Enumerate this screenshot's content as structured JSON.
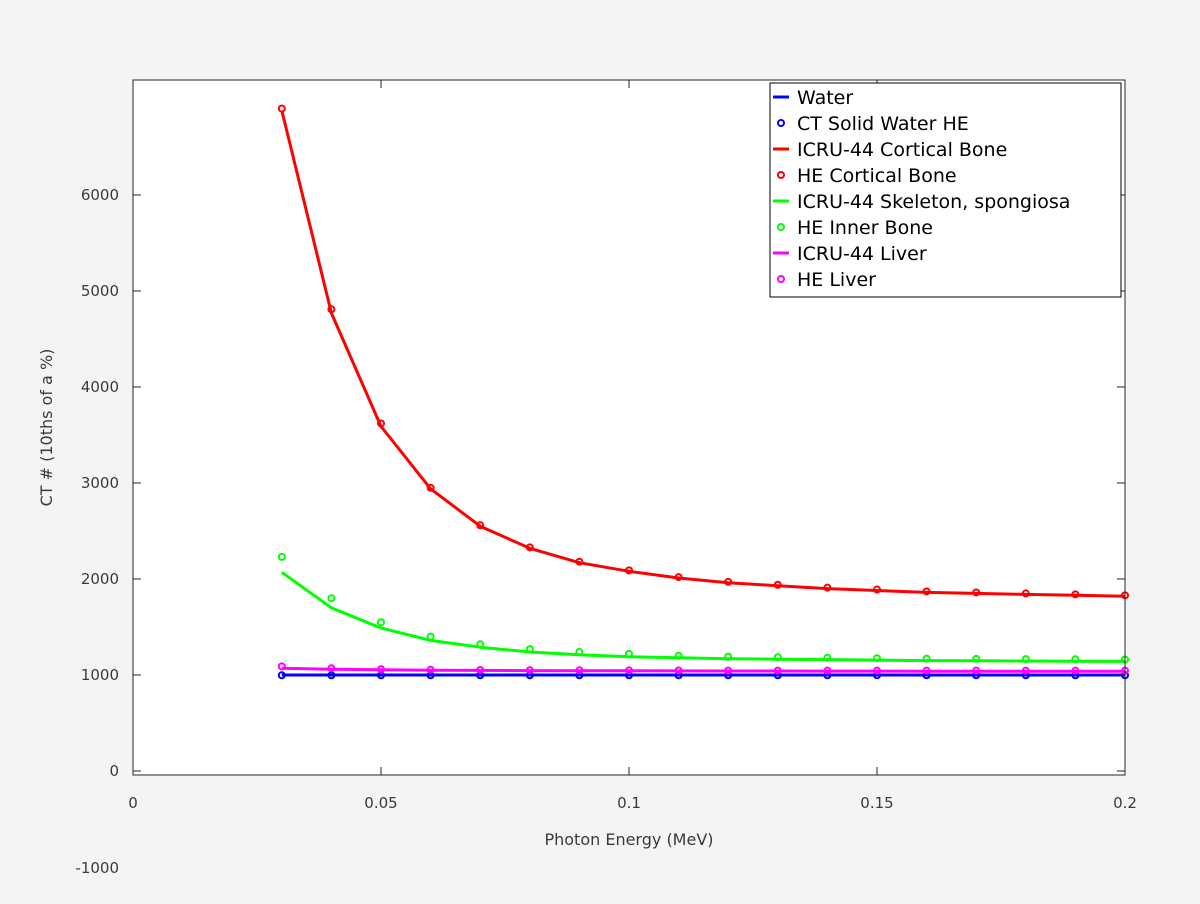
{
  "chart_data": {
    "type": "line",
    "title": "",
    "xlabel": "Photon Energy (MeV)",
    "ylabel": "CT # (10ths of a %)",
    "xlim": [
      0,
      0.2
    ],
    "ylim": [
      0,
      7000
    ],
    "x_ticks": [
      0,
      0.05,
      0.1,
      0.15,
      0.2
    ],
    "x_tick_labels": [
      "0",
      "0.05",
      "0.1",
      "0.15",
      "0.2"
    ],
    "y_ticks": [
      0,
      1000,
      2000,
      3000,
      4000,
      5000,
      6000
    ],
    "y_tick_labels": [
      "0",
      "1000",
      "2000",
      "3000",
      "4000",
      "5000",
      "6000"
    ],
    "extra_label": "-1000",
    "grid": false,
    "legend_position": "top-right",
    "x": [
      0.03,
      0.04,
      0.05,
      0.06,
      0.07,
      0.08,
      0.09,
      0.1,
      0.11,
      0.12,
      0.13,
      0.14,
      0.15,
      0.16,
      0.17,
      0.18,
      0.19,
      0.2
    ],
    "series": [
      {
        "name": "Water",
        "style": "line",
        "color": "#0000ff",
        "values": [
          1000,
          1000,
          1000,
          1000,
          1000,
          1000,
          1000,
          1000,
          1000,
          1000,
          1000,
          1000,
          1000,
          1000,
          1000,
          1000,
          1000,
          1000
        ]
      },
      {
        "name": "CT Solid Water HE",
        "style": "markers",
        "color": "#0000ff",
        "values": [
          997,
          997,
          997,
          997,
          997,
          997,
          997,
          997,
          997,
          997,
          997,
          997,
          997,
          997,
          997,
          997,
          997,
          997
        ]
      },
      {
        "name": "ICRU-44 Cortical Bone",
        "style": "line",
        "color": "#ff0000",
        "values": [
          6880,
          4770,
          3590,
          2940,
          2550,
          2320,
          2170,
          2080,
          2010,
          1960,
          1930,
          1900,
          1880,
          1860,
          1850,
          1840,
          1830,
          1820
        ]
      },
      {
        "name": "HE Cortical Bone",
        "style": "markers",
        "color": "#ff0000",
        "values": [
          6900,
          4810,
          3620,
          2950,
          2560,
          2330,
          2180,
          2090,
          2020,
          1970,
          1940,
          1910,
          1890,
          1870,
          1860,
          1850,
          1840,
          1830
        ]
      },
      {
        "name": "ICRU-44 Skeleton, spongiosa",
        "style": "line",
        "color": "#00ff00",
        "values": [
          2070,
          1700,
          1490,
          1360,
          1290,
          1240,
          1210,
          1190,
          1180,
          1170,
          1165,
          1160,
          1155,
          1150,
          1148,
          1146,
          1144,
          1142
        ]
      },
      {
        "name": "HE Inner Bone",
        "style": "markers",
        "color": "#00ff00",
        "values": [
          2230,
          1800,
          1550,
          1400,
          1320,
          1270,
          1240,
          1220,
          1200,
          1190,
          1185,
          1180,
          1175,
          1170,
          1168,
          1166,
          1164,
          1162
        ]
      },
      {
        "name": "ICRU-44 Liver",
        "style": "line",
        "color": "#ff00ff",
        "values": [
          1070,
          1060,
          1055,
          1050,
          1048,
          1046,
          1045,
          1044,
          1043,
          1042,
          1042,
          1041,
          1041,
          1040,
          1040,
          1040,
          1040,
          1040
        ]
      },
      {
        "name": "HE Liver",
        "style": "markers",
        "color": "#ff00ff",
        "values": [
          1090,
          1070,
          1060,
          1055,
          1052,
          1050,
          1049,
          1048,
          1047,
          1046,
          1046,
          1045,
          1045,
          1045,
          1045,
          1045,
          1045,
          1045
        ]
      }
    ]
  }
}
